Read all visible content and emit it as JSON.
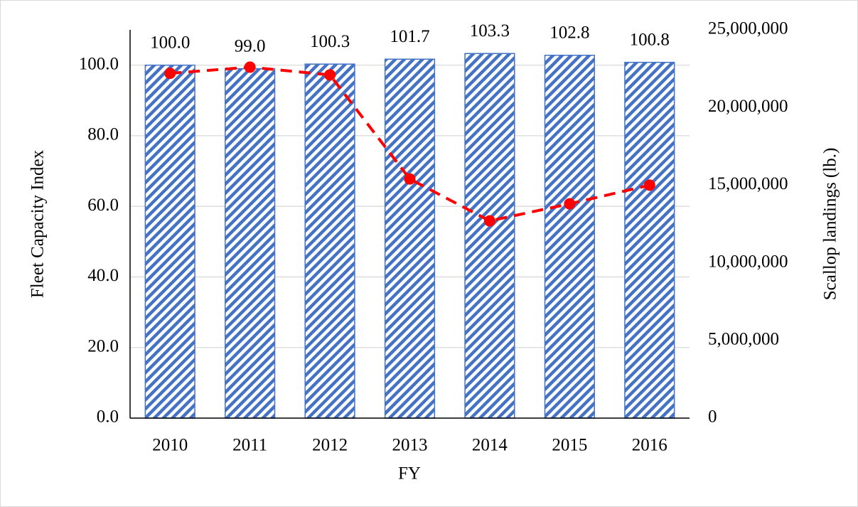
{
  "chart_data": {
    "type": "combo",
    "categories": [
      "2010",
      "2011",
      "2012",
      "2013",
      "2014",
      "2015",
      "2016"
    ],
    "x_label": "FY",
    "y_label": "Fleet Capacity Index",
    "y2_label": "Scallop landings (lb.)",
    "series": [
      {
        "type": "bar",
        "color": "#4472c4",
        "axis": "y",
        "values": [
          100.0,
          99.0,
          100.3,
          101.7,
          103.3,
          102.8,
          100.8
        ],
        "value_labels": [
          "100.0",
          "99.0",
          "100.3",
          "101.7",
          "103.3",
          "102.8",
          "100.8"
        ]
      },
      {
        "type": "line",
        "color": "#ff0000",
        "axis": "y2",
        "values": [
          22200000,
          22600000,
          22100000,
          15400000,
          12700000,
          13800000,
          15000000
        ]
      }
    ],
    "ylim": [
      0,
      110
    ],
    "yticks": [
      {
        "value": 0,
        "label": "0.0"
      },
      {
        "value": 20,
        "label": "20.0"
      },
      {
        "value": 40,
        "label": "40.0"
      },
      {
        "value": 60,
        "label": "60.0"
      },
      {
        "value": 80,
        "label": "80.0"
      },
      {
        "value": 100,
        "label": "100.0"
      }
    ],
    "y2lim": [
      0,
      25000000
    ],
    "y2ticks": [
      0,
      {
        "value": 5000000,
        "label": "5,000,000"
      },
      {
        "value": 10000000,
        "label": "10,000,000"
      },
      {
        "value": 15000000,
        "label": "15,000,000"
      },
      {
        "value": 20000000,
        "label": "20,000,000"
      },
      {
        "value": 25000000,
        "label": "25,000,000"
      }
    ],
    "grid": true
  }
}
